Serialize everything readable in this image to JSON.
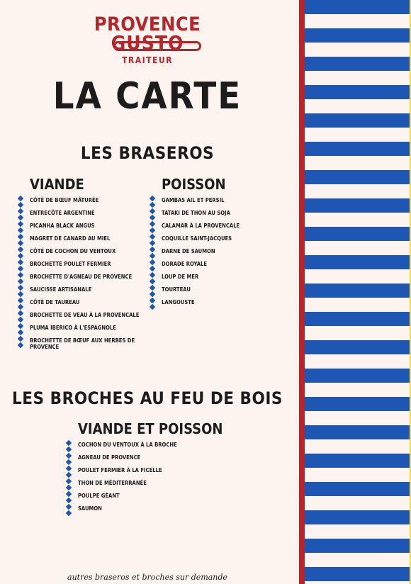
{
  "logo": {
    "line1": "PROVENCE",
    "line2": "GUSTO",
    "line3": "TRAITEUR"
  },
  "title": "LA CARTE",
  "braseros": {
    "title": "LES BRASEROS",
    "viande": {
      "heading": "VIANDE",
      "items": [
        "CÔTÉ DE BŒUF MÂTURÉE",
        "ENTRECÔTE ARGENTINE",
        "PICANHA BLACK ANGUS",
        "MAGRET DE CANARD AU MIEL",
        "CÔTÉ DE COCHON DU VENTOUX",
        "BROCHETTE POULET FERMIER",
        "BROCHETTE D'AGNEAU DE PROVENCE",
        "SAUCISSE ARTISANALE",
        "CÔTÉ DE TAUREAU",
        "BROCHETTE DE VEAU À LA PROVENCALE",
        "PLUMA IBERICO À L'ESPAGNOLE",
        "BROCHETTE DE BŒUF AUX HERBES DE PROVENCE"
      ]
    },
    "poisson": {
      "heading": "POISSON",
      "items": [
        "GAMBAS AIL ET PERSIL",
        "TATAKI DE THON AU SOJA",
        "CALAMAR À LA PROVENCALE",
        "COQUILLE SAINT-JACQUES",
        "DARNE DE SAUMON",
        "DORADE ROYALE",
        "LOUP DE MER",
        "TOURTEAU",
        "LANGOUSTE"
      ]
    }
  },
  "broches": {
    "title": "LES BROCHES AU FEU DE BOIS",
    "mixte": {
      "heading": "VIANDE ET POISSON",
      "items": [
        "COCHON DU VENTOUX À LA BROCHE",
        "AGNEAU DE PROVENCE",
        "POULET FERMIER À LA FICELLE",
        "THON DE MÉDITERRANÉE",
        "POULPE GÉANT",
        "SAUMON"
      ]
    }
  },
  "footer": "autres braseros et broches sur demande",
  "colors": {
    "red": "#b4262c",
    "blue": "#1d57b3",
    "background": "#fdf4ef",
    "text": "#1c1c1c"
  }
}
